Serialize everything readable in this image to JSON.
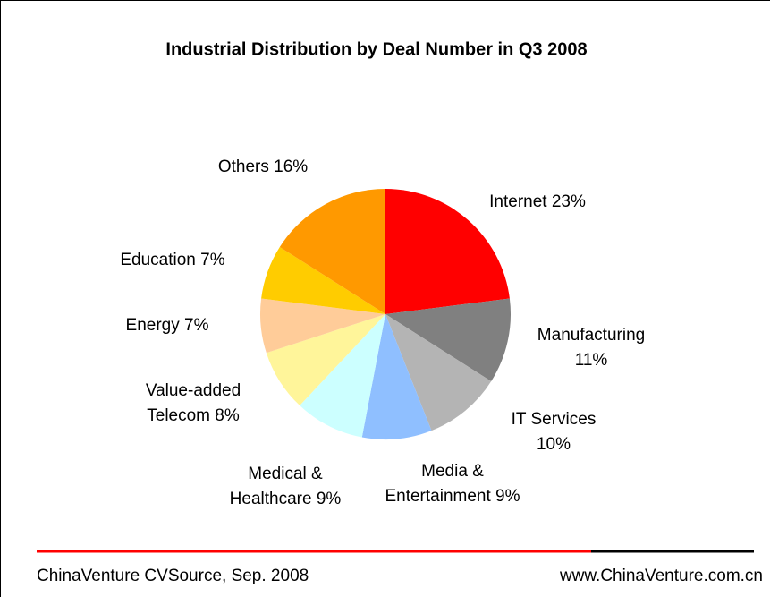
{
  "chart_data": {
    "type": "pie",
    "title": "Industrial Distribution by Deal Number in Q3 2008",
    "categories": [
      "Internet",
      "Manufacturing",
      "IT Services",
      "Media & Entertainment",
      "Medical & Healthcare",
      "Value-added Telecom",
      "Energy",
      "Education",
      "Others"
    ],
    "values": [
      23,
      11,
      10,
      9,
      9,
      8,
      7,
      7,
      16
    ],
    "value_labels": [
      "23%",
      "11%",
      "10%",
      "9%",
      "9%",
      "8%",
      "7%",
      "7%",
      "16%"
    ],
    "colors": [
      "#ff0000",
      "#808080",
      "#b4b4b4",
      "#8fbfff",
      "#ccffff",
      "#fff59a",
      "#ffcc99",
      "#ffcc00",
      "#ff9900"
    ],
    "source": "ChinaVenture CVSource, Sep. 2008",
    "website": "www.ChinaVenture.com.cn"
  }
}
